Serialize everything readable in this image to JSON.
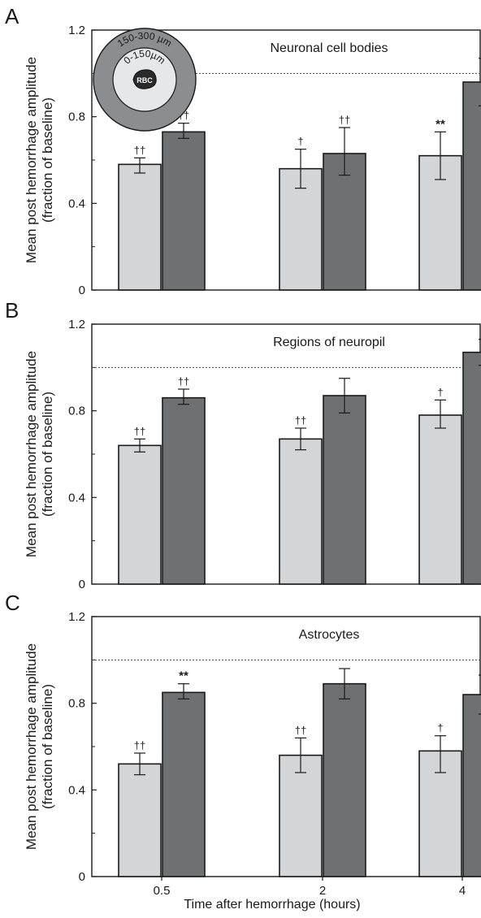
{
  "figure": {
    "xlabel": "Time after hemorrhage (hours)",
    "ylabel_line1": "Mean post hemorrhage amplitude",
    "ylabel_line2": "(fraction of baseline)",
    "bar_colors": {
      "near": "#d4d5d7",
      "far": "#6f7072"
    },
    "baseline_style": "dotted"
  },
  "inset": {
    "outer_label": "150-300 µm",
    "inner_label": "0-150µm",
    "center_label": "RBC",
    "colors": {
      "outer": "#8c8d8f",
      "inner": "#e6e7e8",
      "center": "#2a2a2a"
    }
  },
  "chart_data": [
    {
      "type": "bar",
      "panel": "A",
      "title": "Neuronal cell bodies",
      "categories": [
        "0.5",
        "2",
        "4"
      ],
      "yticks": [
        "0",
        "0.4",
        "0.8",
        "1.2"
      ],
      "ylim": [
        0,
        1.2
      ],
      "baseline": 1.0,
      "series": [
        {
          "values": [
            0.58,
            0.56,
            0.62
          ],
          "err_low": [
            0.04,
            0.09,
            0.11
          ],
          "err_high": [
            0.03,
            0.09,
            0.11
          ],
          "sig": [
            "††",
            "†",
            "**"
          ]
        },
        {
          "values": [
            0.73,
            0.63,
            0.96
          ],
          "err_low": [
            0.03,
            0.1,
            0.11
          ],
          "err_high": [
            0.04,
            0.12,
            0.11
          ],
          "sig": [
            "††",
            "††",
            ""
          ]
        }
      ]
    },
    {
      "type": "bar",
      "panel": "B",
      "title": "Regions of neuropil",
      "categories": [
        "0.5",
        "2",
        "4"
      ],
      "yticks": [
        "0",
        "0.4",
        "0.8",
        "1.2"
      ],
      "ylim": [
        0,
        1.2
      ],
      "baseline": 1.0,
      "series": [
        {
          "values": [
            0.64,
            0.67,
            0.78
          ],
          "err_low": [
            0.03,
            0.05,
            0.06
          ],
          "err_high": [
            0.03,
            0.05,
            0.07
          ],
          "sig": [
            "††",
            "††",
            "†"
          ]
        },
        {
          "values": [
            0.86,
            0.87,
            1.07
          ],
          "err_low": [
            0.03,
            0.08,
            0.06
          ],
          "err_high": [
            0.04,
            0.08,
            0.06
          ],
          "sig": [
            "††",
            "",
            ""
          ]
        }
      ]
    },
    {
      "type": "bar",
      "panel": "C",
      "title": "Astrocytes",
      "categories": [
        "0.5",
        "2",
        "4"
      ],
      "yticks": [
        "0",
        "0.4",
        "0.8",
        "1.2"
      ],
      "ylim": [
        0,
        1.2
      ],
      "baseline": 1.0,
      "series": [
        {
          "values": [
            0.52,
            0.56,
            0.58
          ],
          "err_low": [
            0.05,
            0.08,
            0.1
          ],
          "err_high": [
            0.05,
            0.08,
            0.07
          ],
          "sig": [
            "††",
            "††",
            "†"
          ]
        },
        {
          "values": [
            0.85,
            0.89,
            0.84
          ],
          "err_low": [
            0.03,
            0.07,
            0.09
          ],
          "err_high": [
            0.04,
            0.07,
            0.09
          ],
          "sig": [
            "**",
            "",
            ""
          ]
        }
      ]
    }
  ]
}
